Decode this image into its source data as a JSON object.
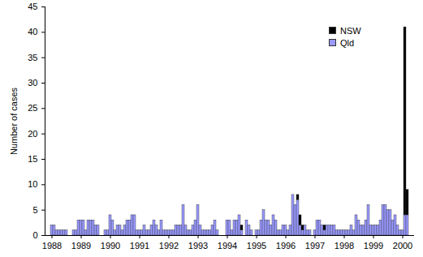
{
  "chart_data": {
    "type": "bar",
    "stacked": true,
    "y_label": "Number of cases",
    "legend": "top-right",
    "grid": false,
    "ylim": [
      0,
      45
    ],
    "yticks": [
      0,
      5,
      10,
      15,
      20,
      25,
      30,
      35,
      40,
      45
    ],
    "categories": [
      "1988",
      null,
      null,
      null,
      null,
      null,
      null,
      null,
      null,
      null,
      null,
      null,
      "1989",
      null,
      null,
      null,
      null,
      null,
      null,
      null,
      null,
      null,
      null,
      null,
      "1990",
      null,
      null,
      null,
      null,
      null,
      null,
      null,
      null,
      null,
      null,
      null,
      "1991",
      null,
      null,
      null,
      null,
      null,
      null,
      null,
      null,
      null,
      null,
      null,
      "1992",
      null,
      null,
      null,
      null,
      null,
      null,
      null,
      null,
      null,
      null,
      null,
      "1993",
      null,
      null,
      null,
      null,
      null,
      null,
      null,
      null,
      null,
      null,
      null,
      "1994",
      null,
      null,
      null,
      null,
      null,
      null,
      null,
      null,
      null,
      null,
      null,
      "1995",
      null,
      null,
      null,
      null,
      null,
      null,
      null,
      null,
      null,
      null,
      null,
      "1996",
      null,
      null,
      null,
      null,
      null,
      null,
      null,
      null,
      null,
      null,
      null,
      "1997",
      null,
      null,
      null,
      null,
      null,
      null,
      null,
      null,
      null,
      null,
      null,
      "1998",
      null,
      null,
      null,
      null,
      null,
      null,
      null,
      null,
      null,
      null,
      null,
      "1999",
      null,
      null,
      null,
      null,
      null,
      null,
      null,
      null,
      null,
      null,
      null,
      "2000",
      null,
      null
    ],
    "series": [
      {
        "name": "Qld",
        "color": "#9999ff",
        "values": [
          2,
          2,
          1,
          1,
          1,
          1,
          1,
          0,
          0,
          1,
          1,
          3,
          3,
          3,
          1,
          3,
          3,
          3,
          2,
          2,
          0,
          0,
          1,
          1,
          4,
          3,
          1,
          2,
          2,
          1,
          2,
          3,
          3,
          4,
          4,
          1,
          1,
          1,
          2,
          1,
          1,
          2,
          3,
          2,
          1,
          3,
          1,
          1,
          1,
          1,
          1,
          2,
          2,
          2,
          6,
          2,
          1,
          1,
          2,
          3,
          6,
          2,
          1,
          1,
          1,
          1,
          2,
          3,
          1,
          0,
          0,
          0,
          3,
          3,
          1,
          3,
          3,
          4,
          1,
          0,
          3,
          2,
          1,
          0,
          1,
          1,
          3,
          5,
          3,
          3,
          2,
          4,
          3,
          1,
          1,
          2,
          2,
          1,
          2,
          8,
          6,
          7,
          2,
          1,
          2,
          1,
          1,
          0,
          1,
          3,
          3,
          2,
          1,
          2,
          2,
          2,
          2,
          1,
          1,
          1,
          1,
          1,
          1,
          2,
          1,
          4,
          3,
          2,
          2,
          3,
          6,
          2,
          2,
          2,
          2,
          3,
          6,
          6,
          5,
          5,
          3,
          4,
          2,
          1,
          1,
          4,
          4
        ]
      },
      {
        "name": "NSW",
        "color": "#000000",
        "values": [
          0,
          0,
          0,
          0,
          0,
          0,
          0,
          0,
          0,
          0,
          0,
          0,
          0,
          0,
          0,
          0,
          0,
          0,
          0,
          0,
          0,
          0,
          0,
          0,
          0,
          0,
          0,
          0,
          0,
          0,
          0,
          0,
          0,
          0,
          0,
          0,
          0,
          0,
          0,
          0,
          0,
          0,
          0,
          0,
          0,
          0,
          0,
          0,
          0,
          0,
          0,
          0,
          0,
          0,
          0,
          0,
          0,
          0,
          0,
          0,
          0,
          0,
          0,
          0,
          0,
          0,
          0,
          0,
          0,
          0,
          0,
          0,
          0,
          0,
          0,
          0,
          0,
          0,
          1,
          0,
          0,
          0,
          0,
          0,
          0,
          0,
          0,
          0,
          0,
          0,
          0,
          0,
          0,
          0,
          0,
          0,
          0,
          0,
          0,
          0,
          0,
          1,
          2,
          1,
          0,
          0,
          0,
          0,
          0,
          0,
          0,
          0,
          1,
          0,
          0,
          0,
          0,
          0,
          0,
          0,
          0,
          0,
          0,
          0,
          0,
          0,
          0,
          0,
          0,
          0,
          0,
          0,
          0,
          0,
          0,
          0,
          0,
          0,
          0,
          0,
          0,
          0,
          0,
          0,
          0,
          37,
          5
        ]
      }
    ]
  }
}
